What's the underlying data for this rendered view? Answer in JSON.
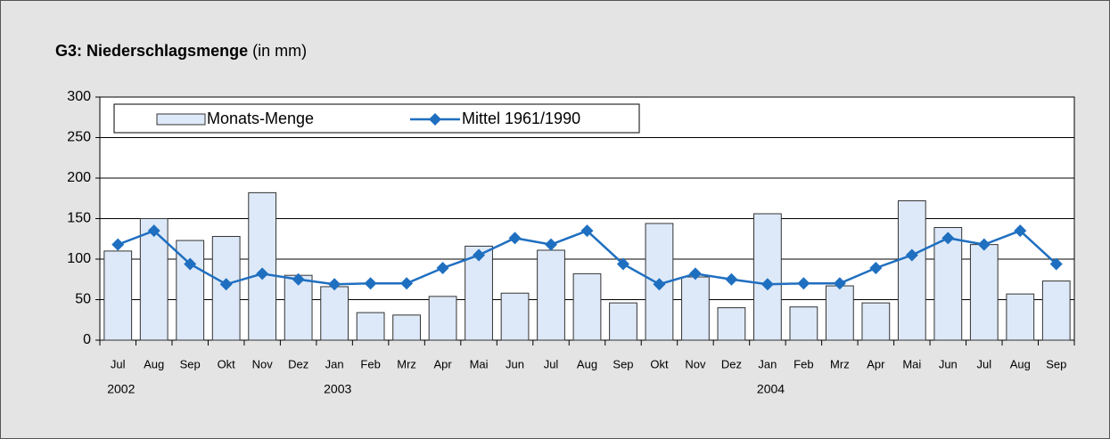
{
  "chart_data": {
    "type": "bar",
    "title": "G3: Niederschlagsmenge",
    "title_suffix": "(in mm)",
    "categories": [
      "Jul",
      "Aug",
      "Sep",
      "Okt",
      "Nov",
      "Dez",
      "Jan",
      "Feb",
      "Mrz",
      "Apr",
      "Mai",
      "Jun",
      "Jul",
      "Aug",
      "Sep",
      "Okt",
      "Nov",
      "Dez",
      "Jan",
      "Feb",
      "Mrz",
      "Apr",
      "Mai",
      "Jun",
      "Jul",
      "Aug",
      "Sep"
    ],
    "years": [
      "2002",
      null,
      null,
      null,
      null,
      null,
      "2003",
      null,
      null,
      null,
      null,
      null,
      null,
      null,
      null,
      null,
      null,
      null,
      "2004",
      null,
      null,
      null,
      null,
      null,
      null,
      null,
      null
    ],
    "series": [
      {
        "name": "Monats-Menge",
        "type": "bar",
        "color": "#dde9f8",
        "values": [
          110,
          150,
          123,
          128,
          182,
          80,
          66,
          34,
          31,
          54,
          116,
          58,
          111,
          82,
          46,
          144,
          78,
          40,
          156,
          41,
          67,
          46,
          172,
          139,
          118,
          57,
          73
        ]
      },
      {
        "name": "Mittel 1961/1990",
        "type": "line",
        "color": "#1f6fc0",
        "values": [
          118,
          135,
          94,
          69,
          82,
          75,
          69,
          70,
          70,
          89,
          105,
          126,
          118,
          135,
          94,
          69,
          82,
          75,
          69,
          70,
          70,
          89,
          105,
          126,
          118,
          135,
          94
        ]
      }
    ],
    "ylim": [
      0,
      300
    ],
    "yticks": [
      0,
      50,
      100,
      150,
      200,
      250,
      300
    ],
    "grid": true
  }
}
